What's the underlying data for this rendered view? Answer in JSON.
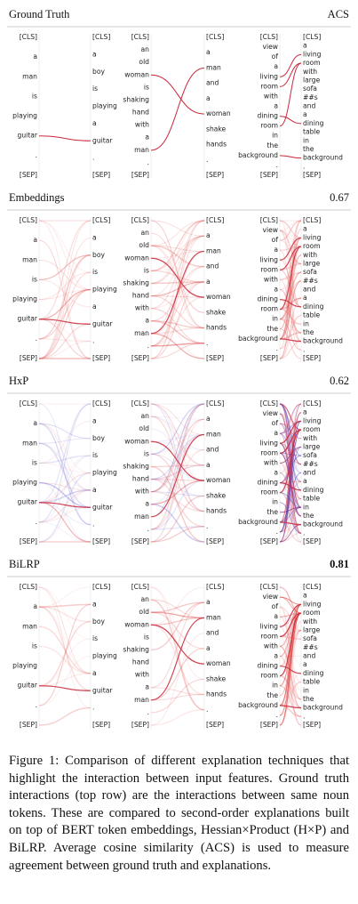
{
  "rows": [
    {
      "method": "Ground Truth",
      "score": "ACS"
    },
    {
      "method": "Embeddings",
      "score": 0.67
    },
    {
      "method": "HxP",
      "score": 0.62
    },
    {
      "method": "BiLRP",
      "score": 0.81
    }
  ],
  "panels": [
    {
      "left": [
        "[CLS]",
        "a",
        "man",
        "is",
        "playing",
        "guitar",
        ".",
        "[SEP]"
      ],
      "right": [
        "[CLS]",
        "a",
        "boy",
        "is",
        "playing",
        "a",
        "guitar",
        ".",
        "[SEP]"
      ]
    },
    {
      "left": [
        "[CLS]",
        "an",
        "old",
        "woman",
        "is",
        "shaking",
        "hand",
        "with",
        "a",
        "man",
        ".",
        "[SEP]"
      ],
      "right": [
        "[CLS]",
        "a",
        "man",
        "and",
        "a",
        "woman",
        "shake",
        "hands",
        ".",
        "[SEP]"
      ]
    },
    {
      "left": [
        "[CLS]",
        "view",
        "of",
        "a",
        "living",
        "room",
        "with",
        "a",
        "dining",
        "room",
        "in",
        "the",
        "background",
        ".",
        "[SEP]"
      ],
      "right": [
        "[CLS]",
        "a",
        "living",
        "room",
        "with",
        "large",
        "sofa",
        "##s",
        "and",
        "a",
        "dining",
        "table",
        "in",
        "the",
        "background",
        ".",
        "[SEP]"
      ]
    }
  ],
  "caption": "Figure 1: Comparison of different explanation techniques that highlight the interaction between input features. Ground truth interactions (top row) are the interactions between same noun tokens. These are compared to second-order explanations built on top of BERT token embeddings, Hessian×Product (H×P) and BiLRP. Average cosine similarity (ACS) is used to measure agreement between ground truth and explanations."
}
